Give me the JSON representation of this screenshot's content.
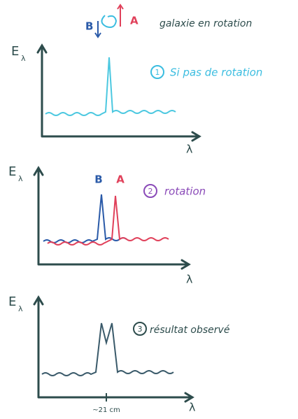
{
  "header": {
    "label_b": "B",
    "label_a": "A",
    "caption": "galaxie en rotation"
  },
  "panels": [
    {
      "number": "1",
      "title": "Si pas de rotation",
      "y_axis": "E",
      "y_sub": "λ",
      "x_axis": "λ"
    },
    {
      "number": "2",
      "title": "rotation",
      "peak_labels": [
        "B",
        "A"
      ],
      "y_axis": "E",
      "y_sub": "λ",
      "x_axis": "λ"
    },
    {
      "number": "3",
      "title": "résultat observé",
      "y_axis": "E",
      "y_sub": "λ",
      "x_axis": "λ",
      "x_tick": "~21 cm"
    }
  ]
}
